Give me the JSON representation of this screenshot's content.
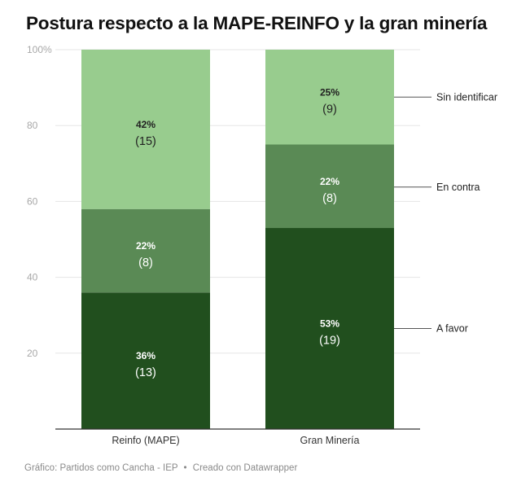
{
  "title": "Postura respecto a la MAPE-REINFO y la gran minería",
  "footer": {
    "source": "Gráfico: Partidos como Cancha - IEP",
    "separator": "•",
    "credit": "Creado con Datawrapper"
  },
  "colors": {
    "a_favor": "#214f1e",
    "en_contra": "#5a8a55",
    "sin_identificar": "#98cc8e",
    "grid": "#e5e5e5",
    "axis": "#333333"
  },
  "chart_data": {
    "type": "bar",
    "stacked": true,
    "categories": [
      "Reinfo (MAPE)",
      "Gran Minería"
    ],
    "y_ticks": [
      "20",
      "40",
      "60",
      "80",
      "100%"
    ],
    "ylim": [
      0,
      100
    ],
    "grid": true,
    "legend_placement": "right",
    "series": [
      {
        "name": "A favor",
        "values": [
          36,
          53
        ],
        "counts": [
          13,
          19
        ],
        "pct_labels": [
          "36%",
          "53%"
        ],
        "count_labels": [
          "(13)",
          "(19)"
        ]
      },
      {
        "name": "En contra",
        "values": [
          22,
          22
        ],
        "counts": [
          8,
          8
        ],
        "pct_labels": [
          "22%",
          "22%"
        ],
        "count_labels": [
          "(8)",
          "(8)"
        ]
      },
      {
        "name": "Sin identificar",
        "values": [
          42,
          25
        ],
        "counts": [
          15,
          9
        ],
        "pct_labels": [
          "42%",
          "25%"
        ],
        "count_labels": [
          "(15)",
          "(9)"
        ]
      }
    ]
  }
}
